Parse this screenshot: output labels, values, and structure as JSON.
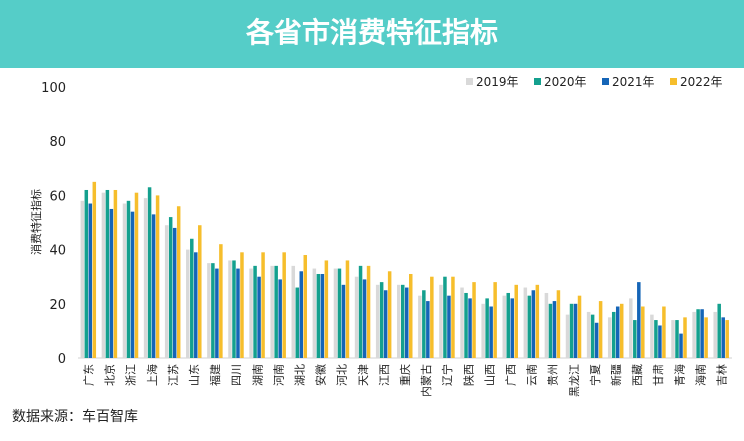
{
  "header": {
    "title": "各省市消费特征指标"
  },
  "source": "数据来源：车百智库",
  "chart_data": {
    "type": "bar",
    "title": "各省市消费特征指标",
    "ylabel": "消费特征指标",
    "ylim": [
      0,
      100
    ],
    "yticks": [
      0,
      20,
      40,
      60,
      80,
      100
    ],
    "grid": false,
    "legend": "top-right",
    "categories": [
      "广东",
      "北京",
      "浙江",
      "上海",
      "江苏",
      "山东",
      "福建",
      "四川",
      "湖南",
      "河南",
      "湖北",
      "安徽",
      "河北",
      "天津",
      "江西",
      "重庆",
      "内蒙古",
      "辽宁",
      "陕西",
      "山西",
      "广西",
      "云南",
      "贵州",
      "黑龙江",
      "宁夏",
      "新疆",
      "西藏",
      "甘肃",
      "青海",
      "海南",
      "吉林"
    ],
    "series": [
      {
        "name": "2019年",
        "color": "#d9d9d9",
        "values": [
          58,
          61,
          57,
          59,
          49,
          40,
          35,
          36,
          33,
          34,
          34,
          33,
          33,
          30,
          27,
          27,
          23,
          27,
          26,
          20,
          23,
          26,
          24,
          16,
          17,
          15,
          22,
          16,
          14,
          17,
          17
        ]
      },
      {
        "name": "2020年",
        "color": "#14a08e",
        "values": [
          62,
          62,
          58,
          63,
          52,
          44,
          35,
          36,
          34,
          34,
          26,
          31,
          33,
          34,
          28,
          27,
          25,
          30,
          24,
          22,
          24,
          23,
          20,
          20,
          16,
          17,
          14,
          14,
          14,
          18,
          20
        ]
      },
      {
        "name": "2021年",
        "color": "#1565b7",
        "values": [
          57,
          55,
          54,
          53,
          48,
          39,
          33,
          33,
          30,
          29,
          32,
          31,
          27,
          29,
          25,
          26,
          21,
          23,
          22,
          19,
          22,
          25,
          21,
          20,
          13,
          19,
          28,
          12,
          9,
          18,
          15
        ]
      },
      {
        "name": "2022年",
        "color": "#f6be2c",
        "values": [
          65,
          62,
          61,
          60,
          56,
          49,
          42,
          39,
          39,
          39,
          38,
          36,
          36,
          34,
          32,
          31,
          30,
          30,
          28,
          28,
          27,
          27,
          25,
          23,
          21,
          20,
          19,
          19,
          15,
          15,
          14
        ]
      }
    ]
  }
}
